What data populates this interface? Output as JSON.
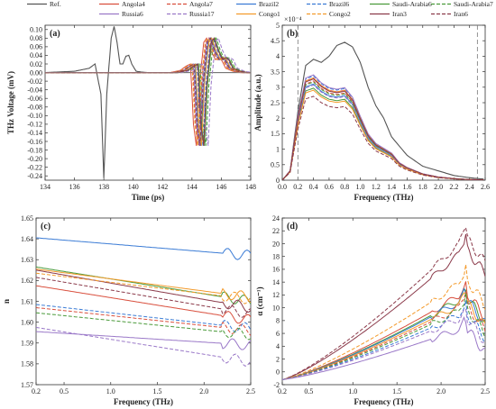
{
  "legend": [
    {
      "name": "Ref.",
      "color": "#555555",
      "dash": ""
    },
    {
      "name": "Angola4",
      "color": "#d94f3d",
      "dash": ""
    },
    {
      "name": "Angola7",
      "color": "#d94f3d",
      "dash": "4 2"
    },
    {
      "name": "Brazil2",
      "color": "#3a7bd5",
      "dash": ""
    },
    {
      "name": "Brazil6",
      "color": "#3a7bd5",
      "dash": "4 2"
    },
    {
      "name": "Saudi-Arabia6",
      "color": "#4a9a3a",
      "dash": ""
    },
    {
      "name": "Saudi-Arabia7",
      "color": "#4a9a3a",
      "dash": "4 2"
    },
    {
      "name": "Russia6",
      "color": "#9a78c8",
      "dash": ""
    },
    {
      "name": "Russia17",
      "color": "#9a78c8",
      "dash": "4 2"
    },
    {
      "name": "Congo1",
      "color": "#f39a2b",
      "dash": ""
    },
    {
      "name": "Congo2",
      "color": "#f39a2b",
      "dash": "4 2"
    },
    {
      "name": "Iran3",
      "color": "#8b3a4a",
      "dash": ""
    },
    {
      "name": "Iran6",
      "color": "#8b3a4a",
      "dash": "4 2"
    }
  ],
  "chart_data": [
    {
      "panel": "(a)",
      "type": "line",
      "xlabel": "Time (ps)",
      "ylabel": "THz Voltage (mV)",
      "xlim": [
        134,
        148
      ],
      "ylim": [
        -0.25,
        0.11
      ],
      "xticks": [
        134,
        136,
        138,
        140,
        142,
        144,
        146,
        148
      ],
      "yticks": [
        0.1,
        0.08,
        0.06,
        0.04,
        0.02,
        0,
        -0.02,
        -0.04,
        -0.06,
        -0.08,
        -0.1,
        -0.12,
        -0.14,
        -0.16,
        -0.18,
        -0.2,
        -0.22,
        -0.24
      ],
      "ytick_labels": [
        "0.10",
        "0.08",
        "0.06",
        "0.04",
        "0.02",
        "0.00",
        "-0.02",
        "-0.04",
        "-0.06",
        "-0.08",
        "-0.10",
        "-0.12",
        "-0.14",
        "-0.16",
        "-0.18",
        "-0.20",
        "-0.22",
        "-0.24"
      ],
      "ref": {
        "x": [
          134,
          136,
          137.0,
          137.4,
          137.8,
          138.0,
          138.2,
          138.5,
          138.7,
          138.9,
          139.1,
          139.3,
          139.5,
          139.7,
          139.9,
          140.2,
          140.6,
          141,
          148
        ],
        "y": [
          0,
          0.003,
          0.01,
          0.02,
          -0.05,
          -0.245,
          -0.05,
          0.08,
          0.107,
          0.07,
          0.02,
          0.02,
          0.038,
          0.04,
          0.02,
          0.003,
          0.001,
          0,
          0
        ]
      },
      "sample_shape": {
        "x": [
          142.5,
          143.2,
          143.6,
          143.9,
          144.1,
          144.3,
          144.5,
          144.8,
          145.0,
          145.3,
          145.6,
          145.8,
          146.0,
          146.3,
          146.8,
          147.3,
          148
        ],
        "y": [
          0,
          0.005,
          0.015,
          0.02,
          -0.12,
          -0.17,
          -0.03,
          0.07,
          0.08,
          0.05,
          0.03,
          0.035,
          0.03,
          0.01,
          0.003,
          0,
          0
        ]
      },
      "sample_offsets_ps": [
        0.0,
        0.15,
        0.3,
        0.45,
        0.55,
        0.65,
        0.2,
        0.8,
        0.35,
        0.1,
        0.5,
        0.25
      ]
    },
    {
      "panel": "(b)",
      "type": "line",
      "xlabel": "Frequency (THz)",
      "ylabel": "Amplitude (a.u.)",
      "yscale_label": "×10⁻⁴",
      "xlim": [
        0,
        2.6
      ],
      "ylim": [
        0,
        5
      ],
      "xticks": [
        0,
        0.2,
        0.4,
        0.6,
        0.8,
        1.0,
        1.2,
        1.4,
        1.6,
        1.8,
        2.0,
        2.2,
        2.4,
        2.6
      ],
      "xtick_labels": [
        "0.0",
        "0.2",
        "0.4",
        "0.6",
        "0.8",
        "1.0",
        "1.2",
        "1.4",
        "1.6",
        "1.8",
        "2.0",
        "2.2",
        "2.4",
        "2.6"
      ],
      "yticks": [
        0,
        0.5,
        1,
        1.5,
        2,
        2.5,
        3,
        3.5,
        4,
        4.5,
        5
      ],
      "ytick_labels": [
        "0",
        "0.5",
        "1",
        "1.5",
        "2",
        "2.5",
        "3",
        "3.5",
        "4",
        "4.5",
        "5"
      ],
      "vlines": [
        0.2,
        2.5
      ],
      "ref": {
        "x": [
          0,
          0.1,
          0.2,
          0.3,
          0.4,
          0.5,
          0.6,
          0.7,
          0.8,
          0.9,
          1.0,
          1.1,
          1.2,
          1.3,
          1.4,
          1.5,
          1.6,
          1.8,
          2.0,
          2.2,
          2.4,
          2.6
        ],
        "y": [
          0,
          0.3,
          2.2,
          3.7,
          3.9,
          3.8,
          4.0,
          4.35,
          4.45,
          4.3,
          3.8,
          3.0,
          2.4,
          2.0,
          1.4,
          1.1,
          0.8,
          0.45,
          0.3,
          0.15,
          0.08,
          0.03
        ]
      },
      "sample_shape": {
        "x": [
          0,
          0.1,
          0.2,
          0.3,
          0.4,
          0.5,
          0.6,
          0.7,
          0.8,
          0.9,
          1.0,
          1.1,
          1.2,
          1.3,
          1.4,
          1.5,
          1.6,
          1.8,
          2.0,
          2.2,
          2.4,
          2.6
        ],
        "y": [
          0,
          0.3,
          2.0,
          3.2,
          3.3,
          3.05,
          2.9,
          2.85,
          2.9,
          2.6,
          2.0,
          1.45,
          1.15,
          1.0,
          0.85,
          0.55,
          0.4,
          0.2,
          0.1,
          0.05,
          0.02,
          0.01
        ]
      },
      "sample_scales": [
        1.0,
        0.97,
        0.94,
        1.02,
        0.9,
        0.96,
        1.03,
        0.93,
        0.88,
        1.0,
        0.99,
        0.82
      ]
    },
    {
      "panel": "(c)",
      "type": "line",
      "xlabel": "Frequency (THz)",
      "ylabel": "n",
      "xlim": [
        0.2,
        2.5
      ],
      "ylim": [
        1.57,
        1.65
      ],
      "xticks": [
        0.2,
        0.5,
        1.0,
        1.5,
        2.0,
        2.5
      ],
      "xtick_labels": [
        "0.2",
        "0.5",
        "1.0",
        "1.5",
        "2.0",
        "2.5"
      ],
      "yticks": [
        1.57,
        1.58,
        1.59,
        1.6,
        1.61,
        1.62,
        1.63,
        1.64,
        1.65
      ],
      "ytick_labels": [
        "1.57",
        "1.58",
        "1.59",
        "1.60",
        "1.61",
        "1.62",
        "1.63",
        "1.64",
        "1.65"
      ],
      "series": [
        {
          "name": "Brazil2",
          "start": 1.6405,
          "end": 1.632
        },
        {
          "name": "Saudi-Arabia6",
          "start": 1.6265,
          "end": 1.61
        },
        {
          "name": "Congo1",
          "start": 1.6255,
          "end": 1.612
        },
        {
          "name": "Iran3",
          "start": 1.625,
          "end": 1.607
        },
        {
          "name": "Congo2",
          "start": 1.6235,
          "end": 1.611
        },
        {
          "name": "Iran6",
          "start": 1.6215,
          "end": 1.604
        },
        {
          "name": "Angola4",
          "start": 1.6175,
          "end": 1.601
        },
        {
          "name": "Brazil6",
          "start": 1.6085,
          "end": 1.597
        },
        {
          "name": "Angola7",
          "start": 1.607,
          "end": 1.596
        },
        {
          "name": "Saudi-Arabia7",
          "start": 1.6045,
          "end": 1.594
        },
        {
          "name": "Russia17",
          "start": 1.5975,
          "end": 1.581
        },
        {
          "name": "Russia6",
          "start": 1.5955,
          "end": 1.589
        }
      ]
    },
    {
      "panel": "(d)",
      "type": "line",
      "xlabel": "Frequency (THz)",
      "ylabel": "α (cm⁻¹)",
      "xlim": [
        0.2,
        2.5
      ],
      "ylim": [
        -2,
        24
      ],
      "xticks": [
        0.2,
        0.5,
        1.0,
        1.5,
        2.0,
        2.5
      ],
      "xtick_labels": [
        "0.2",
        "0.5",
        "1.0",
        "1.5",
        "2.0",
        "2.5"
      ],
      "yticks": [
        -2,
        0,
        2,
        4,
        6,
        8,
        10,
        12,
        14,
        16,
        18,
        20,
        22,
        24
      ],
      "ytick_labels": [
        "-2",
        "0",
        "2",
        "4",
        "6",
        "8",
        "10",
        "12",
        "14",
        "16",
        "18",
        "20",
        "22",
        "24"
      ],
      "series": [
        {
          "name": "Iran6",
          "end": 22.5
        },
        {
          "name": "Iran3",
          "end": 20.8
        },
        {
          "name": "Congo2",
          "end": 16.0
        },
        {
          "name": "Angola4",
          "end": 14.0
        },
        {
          "name": "Saudi-Arabia6",
          "end": 13.3
        },
        {
          "name": "Brazil2",
          "end": 13.0
        },
        {
          "name": "Congo1",
          "end": 12.5
        },
        {
          "name": "Angola7",
          "end": 12.0
        },
        {
          "name": "Saudi-Arabia7",
          "end": 11.5
        },
        {
          "name": "Brazil6",
          "end": 10.8
        },
        {
          "name": "Russia17",
          "end": 10.2
        },
        {
          "name": "Russia6",
          "end": 8.5
        }
      ]
    }
  ]
}
